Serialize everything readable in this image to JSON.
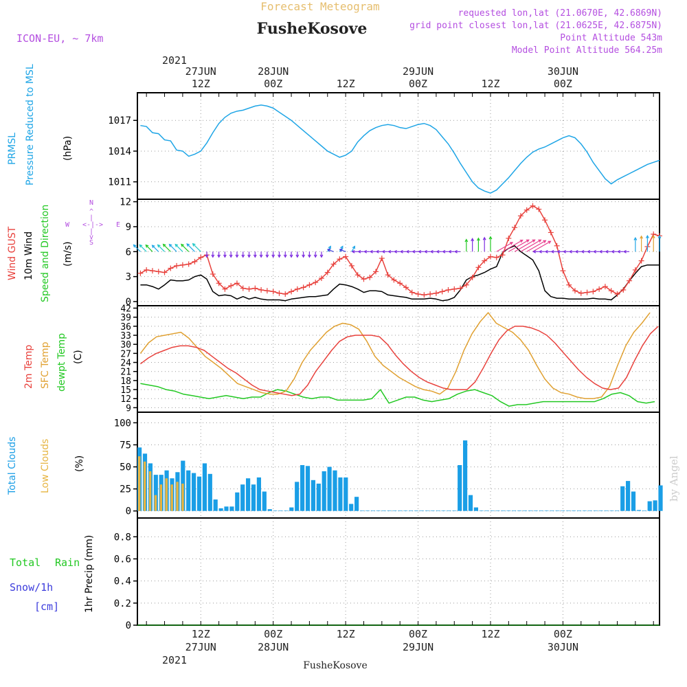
{
  "header": {
    "top_title": "Forecast Meteogram",
    "location": "FusheKosove",
    "model": "ICON-EU, ~ 7km",
    "requested_point": "requested lon,lat (21.0670E, 42.6869N)",
    "closest_point": "grid point closest lon,lat (21.0625E, 42.6875N)",
    "point_altitude": "Point Altitude 543m",
    "model_altitude": "Model Point Altitude 564.25m"
  },
  "footer": {
    "location": "FusheKosove",
    "watermark": "by Angel"
  },
  "time_axis": {
    "top_year": "2021",
    "bottom_year": "2021",
    "ticks": [
      {
        "h": 12,
        "top": [
          "27JUN",
          "12Z"
        ],
        "bottom": [
          "12Z",
          "27JUN"
        ]
      },
      {
        "h": 24,
        "top": [
          "28JUN",
          "00Z"
        ],
        "bottom": [
          "00Z",
          "28JUN"
        ]
      },
      {
        "h": 36,
        "top": [
          "",
          "12Z"
        ],
        "bottom": [
          "12Z",
          ""
        ]
      },
      {
        "h": 48,
        "top": [
          "29JUN",
          "00Z"
        ],
        "bottom": [
          "00Z",
          "29JUN"
        ]
      },
      {
        "h": 60,
        "top": [
          "",
          "12Z"
        ],
        "bottom": [
          "12Z",
          ""
        ]
      },
      {
        "h": 72,
        "top": [
          "30JUN",
          "00Z"
        ],
        "bottom": [
          "00Z",
          "30JUN"
        ]
      }
    ]
  },
  "panel_labels": {
    "pressure": [
      "PRMSL",
      "Pressure Reduced to MSL"
    ],
    "pressure_unit": "(hPa)",
    "wind": [
      "Wind GUST",
      "10m Wind",
      "Speed and Direction"
    ],
    "wind_unit": "(m/s)",
    "compass": {
      "n": "N",
      "s": "S",
      "w": "W",
      "e": "E"
    },
    "temp": [
      "2m Temp",
      "SFC Temp",
      "dewpt Temp"
    ],
    "temp_unit": "(C)",
    "clouds": [
      "Total Clouds",
      "Low Clouds"
    ],
    "clouds_unit": "(%)",
    "precip": [
      "Total",
      "Rain",
      "Snow/1h",
      "[cm]"
    ],
    "precip_unit": "1hr Precip (mm)"
  },
  "colors": {
    "pressure": "#1ea5e6",
    "gust": "#e8413c",
    "wind": "#000000",
    "temp": "#e8413c",
    "sfc_temp": "#e0a030",
    "dewpt": "#22c822",
    "total_clouds": "#1a9ee6",
    "low_clouds": "#e6b440",
    "rain": "#22c822",
    "snow": "#3c3cdc",
    "label_purple": "#b44fe0",
    "header_orange": "#e6be6e"
  },
  "chart_data": [
    {
      "type": "line",
      "panel": "pressure",
      "ylabel": "(hPa)",
      "ylim": [
        1009.3,
        1019.7
      ],
      "yticks": [
        1011,
        1014,
        1017
      ],
      "x_hours": [
        0,
        1,
        2,
        3,
        4,
        5,
        6,
        7,
        8,
        9,
        10,
        11,
        12,
        13,
        14,
        15,
        16,
        17,
        18,
        19,
        20,
        21,
        22,
        23,
        24,
        25,
        26,
        27,
        28,
        29,
        30,
        31,
        32,
        33,
        34,
        35,
        36,
        37,
        38,
        39,
        40,
        41,
        42,
        43,
        44,
        45,
        46,
        47,
        48,
        49,
        50,
        51,
        52,
        53,
        54,
        55,
        56,
        57,
        58,
        59,
        60,
        61,
        62,
        63,
        64,
        65,
        66,
        67,
        68,
        69,
        70,
        71,
        72,
        73,
        74,
        75,
        76,
        77,
        78,
        79,
        80,
        81,
        82,
        83,
        84,
        85,
        86
      ],
      "series": [
        {
          "values": [
            1016.5,
            1016.4,
            1015.8,
            1015.7,
            1015.1,
            1015.0,
            1014.1,
            1014.0,
            1013.5,
            1013.7,
            1014.0,
            1014.8,
            1015.8,
            1016.7,
            1017.3,
            1017.7,
            1017.9,
            1018.0,
            1018.2,
            1018.4,
            1018.5,
            1018.4,
            1018.2,
            1017.8,
            1017.4,
            1017.0,
            1016.5,
            1016.0,
            1015.5,
            1015.0,
            1014.5,
            1014.0,
            1013.7,
            1013.4,
            1013.6,
            1014.0,
            1014.9,
            1015.5,
            1016.0,
            1016.3,
            1016.5,
            1016.6,
            1016.5,
            1016.3,
            1016.2,
            1016.4,
            1016.6,
            1016.7,
            1016.5,
            1016.1,
            1015.4,
            1014.7,
            1013.8,
            1012.8,
            1011.9,
            1011.0,
            1010.4,
            1010.1,
            1009.9,
            1010.2,
            1010.8,
            1011.4,
            1012.1,
            1012.8,
            1013.4,
            1013.9,
            1014.2,
            1014.4,
            1014.7,
            1015.0,
            1015.3,
            1015.5,
            1015.3,
            1014.7,
            1013.9,
            1012.9,
            1012.1,
            1011.3,
            1010.8,
            1011.2,
            1011.5,
            1011.8,
            1012.1,
            1012.4,
            1012.7,
            1012.9,
            1013.1
          ]
        }
      ]
    },
    {
      "type": "line",
      "panel": "wind",
      "ylabel": "(m/s)",
      "ylim": [
        -0.5,
        12.3
      ],
      "yticks": [
        0,
        3,
        6,
        9,
        12
      ],
      "series": [
        {
          "name": "Wind GUST",
          "values": [
            3.4,
            3.8,
            3.7,
            3.6,
            3.5,
            4.0,
            4.3,
            4.4,
            4.5,
            4.8,
            5.3,
            5.6,
            3.3,
            2.2,
            1.5,
            1.9,
            2.2,
            1.6,
            1.5,
            1.6,
            1.4,
            1.3,
            1.2,
            1.0,
            0.9,
            1.2,
            1.5,
            1.7,
            2.0,
            2.3,
            2.8,
            3.5,
            4.5,
            5.1,
            5.4,
            4.3,
            3.2,
            2.7,
            2.9,
            3.6,
            5.2,
            3.2,
            2.6,
            2.2,
            1.7,
            1.1,
            0.9,
            0.8,
            0.9,
            1.0,
            1.2,
            1.4,
            1.5,
            1.6,
            2.0,
            2.9,
            4.1,
            4.9,
            5.4,
            5.3,
            5.6,
            7.6,
            8.9,
            10.3,
            11.0,
            11.5,
            11.1,
            9.8,
            8.3,
            6.7,
            3.7,
            2.0,
            1.3,
            1.0,
            1.1,
            1.2,
            1.5,
            1.8,
            1.3,
            0.9,
            1.4,
            2.5,
            3.8,
            4.9,
            6.6,
            8.1,
            7.9
          ]
        },
        {
          "name": "10m Wind",
          "values": [
            2.0,
            2.0,
            1.8,
            1.5,
            2.0,
            2.6,
            2.5,
            2.5,
            2.6,
            3.0,
            3.2,
            2.7,
            1.2,
            0.7,
            0.8,
            0.7,
            0.3,
            0.6,
            0.3,
            0.5,
            0.3,
            0.2,
            0.2,
            0.2,
            0.1,
            0.3,
            0.4,
            0.5,
            0.6,
            0.6,
            0.7,
            0.8,
            1.5,
            2.1,
            2.0,
            1.8,
            1.5,
            1.1,
            1.3,
            1.3,
            1.2,
            0.8,
            0.7,
            0.6,
            0.5,
            0.3,
            0.3,
            0.3,
            0.4,
            0.3,
            0.1,
            0.2,
            0.5,
            1.4,
            2.6,
            3.0,
            3.2,
            3.5,
            3.9,
            4.2,
            5.9,
            6.4,
            6.7,
            6.0,
            5.5,
            5.0,
            3.7,
            1.3,
            0.6,
            0.4,
            0.4,
            0.3,
            0.3,
            0.3,
            0.3,
            0.4,
            0.3,
            0.3,
            0.2,
            0.8,
            1.5,
            2.5,
            3.4,
            4.2,
            4.4,
            4.4,
            4.4
          ]
        }
      ]
    },
    {
      "type": "line",
      "panel": "temperature",
      "ylabel": "(C)",
      "ylim": [
        7.5,
        42.8
      ],
      "yticks": [
        9,
        12,
        15,
        18,
        21,
        24,
        27,
        30,
        33,
        36,
        39,
        42
      ],
      "series": [
        {
          "name": "2m Temp",
          "values": [
            23.5,
            25.5,
            27.0,
            28.0,
            29.0,
            29.5,
            29.5,
            29.0,
            28.0,
            26.0,
            24.0,
            22.0,
            20.5,
            18.5,
            16.5,
            15.0,
            14.5,
            14.0,
            13.5,
            13.0,
            13.5,
            16.5,
            21.0,
            24.5,
            28.0,
            31.0,
            32.5,
            33.0,
            33.0,
            33.0,
            32.5,
            30.0,
            26.5,
            23.5,
            21.0,
            19.0,
            17.5,
            16.5,
            15.5,
            15.0,
            15.0,
            15.0,
            17.5,
            22.0,
            27.0,
            31.5,
            34.5,
            36.0,
            36.0,
            35.5,
            34.5,
            33.0,
            30.5,
            27.5,
            24.5,
            21.5,
            19.0,
            17.0,
            15.5,
            15.0,
            15.5,
            19.0,
            24.5,
            29.5,
            33.5,
            36.0
          ]
        },
        {
          "name": "SFC Temp",
          "values": [
            27.0,
            30.5,
            32.5,
            33.0,
            33.5,
            34.0,
            32.0,
            29.0,
            26.0,
            24.0,
            22.0,
            19.5,
            17.0,
            16.0,
            15.0,
            14.0,
            13.5,
            13.5,
            14.5,
            18.5,
            24.0,
            28.0,
            31.0,
            34.0,
            36.0,
            37.0,
            36.5,
            35.0,
            31.0,
            26.0,
            23.0,
            21.0,
            19.0,
            17.5,
            16.0,
            15.0,
            14.5,
            13.5,
            15.5,
            21.0,
            28.0,
            33.5,
            37.5,
            40.5,
            37.0,
            35.5,
            34.0,
            31.5,
            28.0,
            23.0,
            18.5,
            15.5,
            14.0,
            13.5,
            12.5,
            12.0,
            12.0,
            12.5,
            16.0,
            23.0,
            29.5,
            34.0,
            37.0,
            40.5
          ]
        },
        {
          "name": "dewpt Temp",
          "values": [
            17.0,
            16.5,
            16.0,
            15.0,
            14.5,
            13.5,
            13.0,
            12.5,
            12.0,
            12.5,
            13.0,
            12.5,
            12.0,
            12.5,
            12.5,
            14.0,
            15.0,
            14.5,
            13.5,
            12.5,
            12.0,
            12.5,
            12.5,
            11.5,
            11.5,
            11.5,
            11.5,
            12.0,
            15.0,
            10.5,
            11.5,
            12.5,
            12.5,
            11.5,
            11.0,
            11.5,
            12.0,
            13.5,
            14.5,
            15.0,
            14.0,
            13.0,
            11.0,
            9.5,
            10.0,
            10.0,
            10.5,
            11.0,
            11.0,
            11.0,
            11.0,
            11.0,
            11.0,
            11.0,
            12.0,
            13.5,
            14.0,
            13.0,
            11.0,
            10.5,
            11.0
          ]
        }
      ]
    },
    {
      "type": "bar",
      "panel": "clouds",
      "ylabel": "(%)",
      "ylim": [
        -8,
        112
      ],
      "yticks": [
        0,
        25,
        50,
        75,
        100
      ],
      "series": [
        {
          "name": "Total Clouds",
          "values": [
            72,
            65,
            54,
            41,
            41,
            46,
            37,
            44,
            57,
            46,
            43,
            39,
            54,
            42,
            13,
            3,
            5,
            5,
            21,
            30,
            37,
            30,
            38,
            22,
            2,
            0,
            0,
            0,
            4,
            33,
            52,
            51,
            35,
            31,
            45,
            50,
            46,
            38,
            38,
            8,
            16,
            0,
            0,
            0,
            0,
            0,
            0,
            0,
            0,
            0,
            0,
            0,
            0,
            0,
            0,
            0,
            0,
            0,
            0,
            52,
            80,
            18,
            4,
            0,
            0,
            0,
            0,
            0,
            0,
            0,
            0,
            0,
            0,
            0,
            0,
            0,
            0,
            0,
            0,
            0,
            0,
            0,
            0,
            0,
            0,
            0,
            0,
            0,
            0,
            28,
            34,
            22,
            1,
            0,
            11,
            12,
            29
          ]
        },
        {
          "name": "Low Clouds",
          "values": [
            62,
            56,
            45,
            18,
            30,
            37,
            30,
            33,
            31,
            0,
            0,
            0,
            0,
            0,
            0,
            0,
            0,
            0,
            0,
            0,
            0,
            0,
            0,
            0,
            0,
            0,
            0,
            0,
            0,
            0,
            0,
            0,
            0,
            0,
            0,
            0,
            0,
            0,
            0,
            0,
            0,
            0,
            0,
            0,
            0,
            0,
            0,
            0,
            0,
            0,
            0,
            0,
            0,
            0,
            0,
            0,
            0,
            0,
            0,
            0,
            0,
            0,
            0,
            0,
            0,
            0,
            0,
            0,
            0,
            0,
            0,
            0,
            0,
            0,
            0,
            0,
            0,
            0,
            0,
            0,
            0,
            0,
            0,
            0,
            0,
            0,
            0,
            0,
            0,
            0,
            0,
            0,
            0,
            0,
            0,
            0,
            0
          ]
        }
      ]
    },
    {
      "type": "bar",
      "panel": "precipitation",
      "ylabel": "1hr Precip (mm)",
      "ylim": [
        0,
        0.97
      ],
      "yticks": [
        0,
        0.2,
        0.4,
        0.6,
        0.8
      ],
      "series": [
        {
          "name": "Total",
          "values": [
            0
          ]
        },
        {
          "name": "Snow/1h",
          "values": [
            0
          ]
        }
      ]
    }
  ]
}
